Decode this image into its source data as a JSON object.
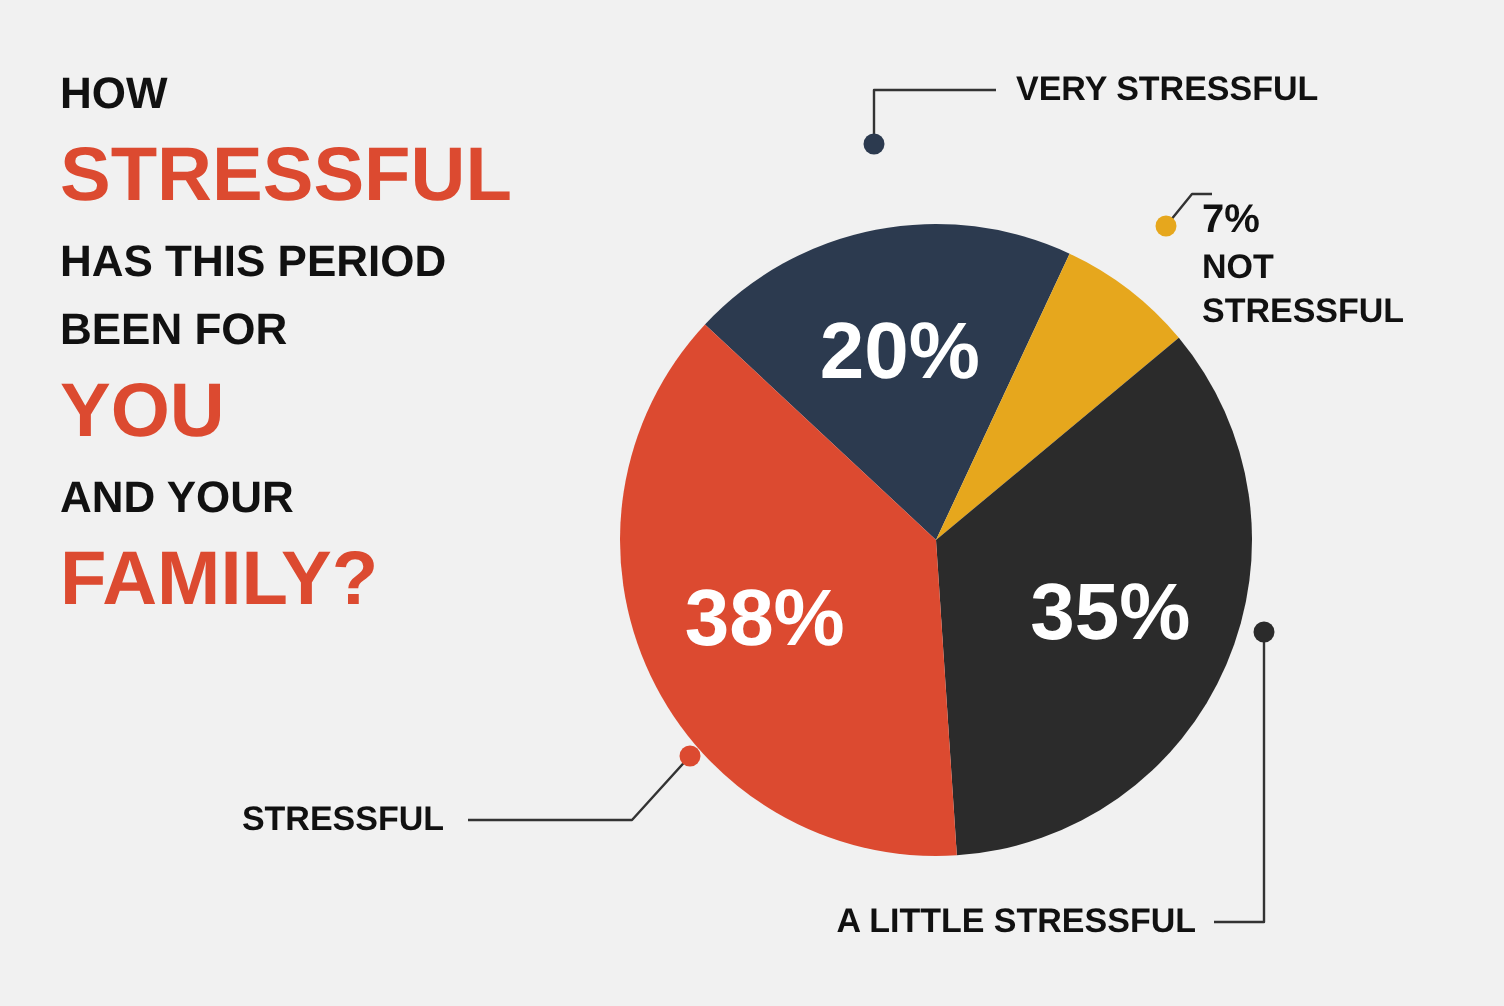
{
  "chart_data": {
    "type": "pie",
    "title": "HOW STRESSFUL HAS THIS PERIOD BEEN FOR YOU AND YOUR FAMILY?",
    "categories": [
      "VERY STRESSFUL",
      "NOT STRESSFUL",
      "A LITTLE STRESSFUL",
      "STRESSFUL"
    ],
    "values": [
      20,
      7,
      35,
      38
    ],
    "colors": [
      "#2c3a4f",
      "#e6a71d",
      "#2b2b2b",
      "#dc4a30"
    ],
    "value_labels": [
      "20%",
      "7%",
      "35%",
      "38%"
    ]
  }
}
